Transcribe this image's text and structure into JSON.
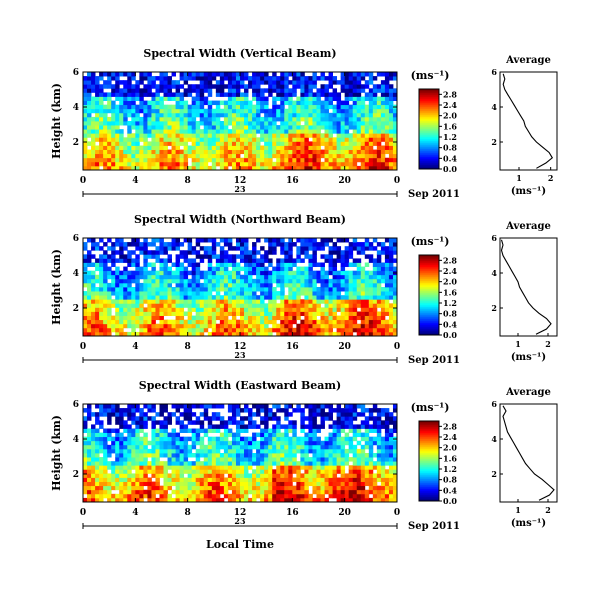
{
  "figure": {
    "xlabel_bottom": "Local Time",
    "date_label": "Sep 2011",
    "day_label": "23"
  },
  "chart_data": [
    {
      "type": "heatmap",
      "title": "Spectral Width (Vertical Beam)",
      "ylabel": "Height (km)",
      "xticks": [
        "0",
        "4",
        "8",
        "12",
        "16",
        "20",
        "0"
      ],
      "yticks": [
        "2",
        "4",
        "6"
      ],
      "ylim": [
        0.4,
        6.0
      ],
      "colorbar": {
        "unit": "(ms⁻¹)",
        "ticks": [
          "0.0",
          "0.4",
          "0.8",
          "1.2",
          "1.6",
          "2.0",
          "2.4",
          "2.8"
        ],
        "range": [
          0.0,
          3.0
        ]
      },
      "pattern": {
        "low_zone_top_km": 2.6,
        "low_value": 2.1,
        "mid_value": 1.3,
        "top_value": 0.35,
        "gap_fraction": 0.08
      }
    },
    {
      "type": "line",
      "title": "Average",
      "xlabel": "(ms⁻¹)",
      "xticks": [
        "1",
        "2"
      ],
      "yticks": [
        "2",
        "4",
        "6"
      ],
      "xlim": [
        0.4,
        2.2
      ],
      "ylim": [
        0.4,
        6.0
      ],
      "y": [
        0.5,
        0.8,
        1.1,
        1.4,
        1.7,
        2.0,
        2.3,
        2.6,
        2.9,
        3.2,
        3.5,
        3.8,
        4.1,
        4.4,
        4.7,
        5.0,
        5.3,
        5.6,
        5.9
      ],
      "values": [
        1.55,
        1.85,
        2.05,
        1.95,
        1.75,
        1.55,
        1.4,
        1.3,
        1.2,
        1.15,
        1.05,
        0.95,
        0.85,
        0.75,
        0.65,
        0.55,
        0.5,
        0.55,
        0.5
      ]
    },
    {
      "type": "heatmap",
      "title": "Spectral Width (Northward Beam)",
      "ylabel": "Height (km)",
      "xticks": [
        "0",
        "4",
        "8",
        "12",
        "16",
        "20",
        "0"
      ],
      "yticks": [
        "2",
        "4",
        "6"
      ],
      "ylim": [
        0.4,
        6.0
      ],
      "colorbar": {
        "unit": "(ms⁻¹)",
        "ticks": [
          "0.0",
          "0.4",
          "0.8",
          "1.2",
          "1.6",
          "2.0",
          "2.4",
          "2.8"
        ],
        "range": [
          0.0,
          3.0
        ]
      },
      "pattern": {
        "low_zone_top_km": 2.4,
        "low_value": 2.2,
        "mid_value": 1.2,
        "top_value": 0.4,
        "gap_fraction": 0.12
      }
    },
    {
      "type": "line",
      "title": "Average",
      "xlabel": "(ms⁻¹)",
      "xticks": [
        "1",
        "2"
      ],
      "yticks": [
        "2",
        "4",
        "6"
      ],
      "xlim": [
        0.4,
        2.3
      ],
      "ylim": [
        0.4,
        6.0
      ],
      "y": [
        0.5,
        0.8,
        1.1,
        1.4,
        1.7,
        2.0,
        2.3,
        2.6,
        2.9,
        3.2,
        3.5,
        3.8,
        4.1,
        4.4,
        4.7,
        5.0,
        5.3,
        5.6,
        5.9
      ],
      "values": [
        1.6,
        1.95,
        2.1,
        1.95,
        1.7,
        1.5,
        1.35,
        1.25,
        1.15,
        1.05,
        1.0,
        0.9,
        0.8,
        0.7,
        0.6,
        0.5,
        0.45,
        0.5,
        0.45
      ]
    },
    {
      "type": "heatmap",
      "title": "Spectral Width (Eastward Beam)",
      "ylabel": "Height (km)",
      "xticks": [
        "0",
        "4",
        "8",
        "12",
        "16",
        "20",
        "0"
      ],
      "yticks": [
        "2",
        "4",
        "6"
      ],
      "ylim": [
        0.4,
        6.0
      ],
      "colorbar": {
        "unit": "(ms⁻¹)",
        "ticks": [
          "0.0",
          "0.4",
          "0.8",
          "1.2",
          "1.6",
          "2.0",
          "2.4",
          "2.8"
        ],
        "range": [
          0.0,
          3.0
        ]
      },
      "pattern": {
        "low_zone_top_km": 2.5,
        "low_value": 2.3,
        "mid_value": 1.3,
        "top_value": 0.35,
        "gap_fraction": 0.14
      }
    },
    {
      "type": "line",
      "title": "Average",
      "xlabel": "(ms⁻¹)",
      "xticks": [
        "1",
        "2"
      ],
      "yticks": [
        "2",
        "4",
        "6"
      ],
      "xlim": [
        0.4,
        2.3
      ],
      "ylim": [
        0.4,
        6.0
      ],
      "y": [
        0.5,
        0.8,
        1.1,
        1.4,
        1.7,
        2.0,
        2.3,
        2.6,
        2.9,
        3.2,
        3.5,
        3.8,
        4.1,
        4.4,
        4.7,
        5.0,
        5.3,
        5.6,
        5.9
      ],
      "values": [
        1.7,
        2.05,
        2.2,
        2.0,
        1.8,
        1.55,
        1.4,
        1.25,
        1.15,
        1.05,
        0.95,
        0.85,
        0.75,
        0.65,
        0.6,
        0.55,
        0.5,
        0.6,
        0.5
      ]
    }
  ],
  "colors": {
    "jet": [
      "#00007f",
      "#0000ff",
      "#007fff",
      "#00ffff",
      "#7fff7f",
      "#ffff00",
      "#ff7f00",
      "#ff0000",
      "#7f0000"
    ]
  }
}
